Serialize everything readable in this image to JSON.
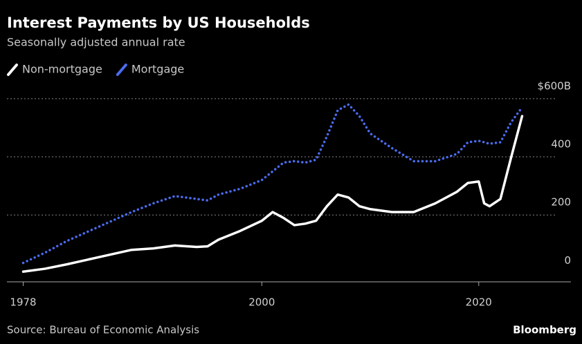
{
  "chart_data": {
    "type": "line",
    "title": "Interest Payments by US Households",
    "subtitle": "Seasonally adjusted annual rate",
    "source": "Source: Bureau of Economic Analysis",
    "brand": "Bloomberg",
    "x": [
      1978,
      1980,
      1982,
      1985,
      1988,
      1990,
      1992,
      1994,
      1995,
      1996,
      1998,
      2000,
      2001,
      2002,
      2003,
      2004,
      2005,
      2006,
      2007,
      2008,
      2009,
      2010,
      2012,
      2014,
      2016,
      2018,
      2019,
      2020,
      2020.5,
      2021,
      2022,
      2023,
      2024
    ],
    "series": [
      {
        "name": "Non-mortgage",
        "color": "#ffffff",
        "style": "solid",
        "values": [
          5,
          15,
          30,
          55,
          80,
          85,
          95,
          90,
          92,
          115,
          145,
          180,
          210,
          190,
          165,
          170,
          180,
          230,
          270,
          260,
          230,
          220,
          210,
          210,
          240,
          280,
          310,
          315,
          240,
          230,
          255,
          400,
          540
        ]
      },
      {
        "name": "Mortgage",
        "color": "#4a6cf0",
        "style": "dotted",
        "values": [
          35,
          70,
          110,
          160,
          210,
          240,
          265,
          255,
          250,
          270,
          290,
          320,
          350,
          380,
          385,
          380,
          390,
          470,
          560,
          580,
          540,
          480,
          430,
          385,
          385,
          410,
          450,
          455,
          450,
          445,
          450,
          520,
          570
        ]
      }
    ],
    "xlim": [
      1976.5,
      2028.5
    ],
    "xticks": [
      1978,
      2000,
      2020
    ],
    "ylim": [
      -30,
      640
    ],
    "yticks": [
      0,
      200,
      400,
      {
        "value": 600,
        "label": "$600B"
      }
    ],
    "grid": true,
    "axis_side": "right",
    "background": "#000000"
  }
}
